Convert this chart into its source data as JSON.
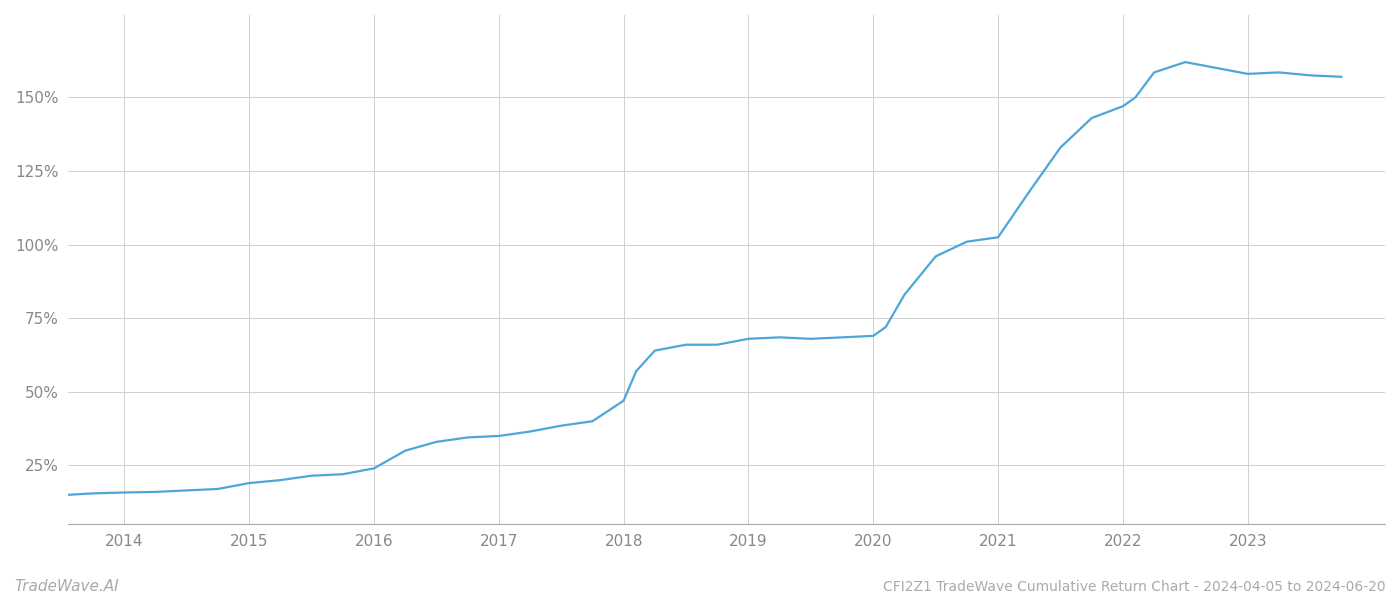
{
  "title": "CFI2Z1 TradeWave Cumulative Return Chart - 2024-04-05 to 2024-06-20",
  "watermark": "TradeWave.AI",
  "line_color": "#4da6d9",
  "background_color": "#ffffff",
  "grid_color": "#d0d0d0",
  "years": [
    2014,
    2015,
    2016,
    2017,
    2018,
    2019,
    2020,
    2021,
    2022,
    2023
  ],
  "x_values": [
    2013.55,
    2013.75,
    2014.0,
    2014.25,
    2014.5,
    2014.75,
    2015.0,
    2015.25,
    2015.5,
    2015.75,
    2016.0,
    2016.25,
    2016.5,
    2016.75,
    2017.0,
    2017.25,
    2017.5,
    2017.75,
    2018.0,
    2018.1,
    2018.25,
    2018.5,
    2018.75,
    2019.0,
    2019.25,
    2019.5,
    2019.75,
    2020.0,
    2020.1,
    2020.25,
    2020.5,
    2020.75,
    2021.0,
    2021.25,
    2021.5,
    2021.75,
    2022.0,
    2022.1,
    2022.25,
    2022.5,
    2022.75,
    2023.0,
    2023.25,
    2023.5,
    2023.75
  ],
  "y_values": [
    15.0,
    15.5,
    15.8,
    16.0,
    16.5,
    17.0,
    19.0,
    20.0,
    21.5,
    22.0,
    24.0,
    30.0,
    33.0,
    34.5,
    35.0,
    36.5,
    38.5,
    40.0,
    47.0,
    57.0,
    64.0,
    66.0,
    66.0,
    68.0,
    68.5,
    68.0,
    68.5,
    69.0,
    72.0,
    83.0,
    96.0,
    101.0,
    102.5,
    118.0,
    133.0,
    143.0,
    147.0,
    150.0,
    158.5,
    162.0,
    160.0,
    158.0,
    158.5,
    157.5,
    157.0
  ],
  "yticks": [
    25,
    50,
    75,
    100,
    125,
    150
  ],
  "ylim": [
    5,
    178
  ],
  "xlim": [
    2013.55,
    2024.1
  ]
}
